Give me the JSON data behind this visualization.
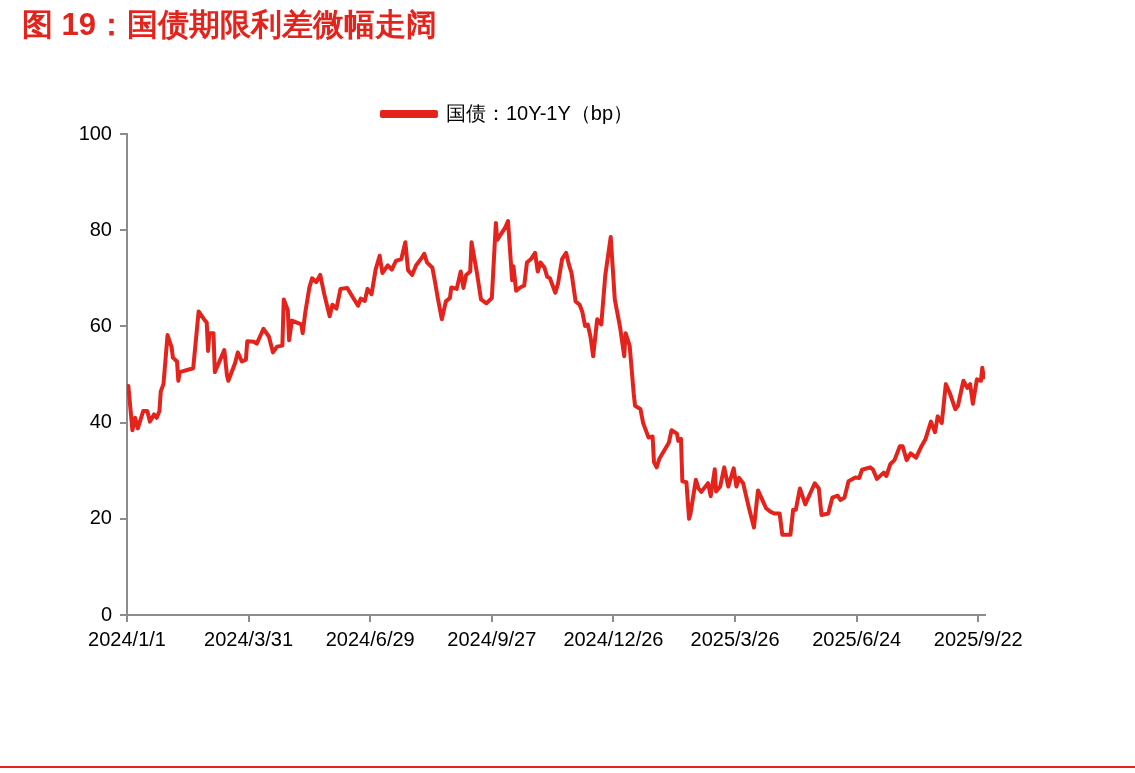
{
  "chart_data": {
    "type": "line",
    "title": "图 19：国债期限利差微幅走阔",
    "legend": "top",
    "xlim": [
      "2024-01-01",
      "2025-09-27"
    ],
    "xticks": [
      {
        "value": "2024-01-01",
        "label": "2024/1/1"
      },
      {
        "value": "2024-03-31",
        "label": "2024/3/31"
      },
      {
        "value": "2024-06-29",
        "label": "2024/6/29"
      },
      {
        "value": "2024-09-27",
        "label": "2024/9/27"
      },
      {
        "value": "2024-12-26",
        "label": "2024/12/26"
      },
      {
        "value": "2025-03-26",
        "label": "2025/3/26"
      },
      {
        "value": "2025-06-24",
        "label": "2025/6/24"
      },
      {
        "value": "2025-09-22",
        "label": "2025/9/22"
      }
    ],
    "ylim": [
      0,
      100
    ],
    "yticks": [
      0,
      20,
      40,
      60,
      80,
      100
    ],
    "x": [
      "2024-01-02",
      "2024-01-05",
      "2024-01-07",
      "2024-01-09",
      "2024-01-13",
      "2024-01-16",
      "2024-01-18",
      "2024-01-21",
      "2024-01-23",
      "2024-01-25",
      "2024-01-26",
      "2024-01-28",
      "2024-01-31",
      "2024-02-03",
      "2024-02-04",
      "2024-02-07",
      "2024-02-08",
      "2024-02-09",
      "2024-02-19",
      "2024-02-23",
      "2024-02-27",
      "2024-02-29",
      "2024-03-01",
      "2024-03-02",
      "2024-03-05",
      "2024-03-06",
      "2024-03-10",
      "2024-03-13",
      "2024-03-15",
      "2024-03-16",
      "2024-03-19",
      "2024-03-21",
      "2024-03-23",
      "2024-03-26",
      "2024-03-29",
      "2024-03-30",
      "2024-04-04",
      "2024-04-06",
      "2024-04-11",
      "2024-04-15",
      "2024-04-18",
      "2024-04-21",
      "2024-04-25",
      "2024-04-26",
      "2024-04-29",
      "2024-04-30",
      "2024-05-02",
      "2024-05-09",
      "2024-05-10",
      "2024-05-12",
      "2024-05-15",
      "2024-05-17",
      "2024-05-20",
      "2024-05-23",
      "2024-05-26",
      "2024-05-30",
      "2024-06-01",
      "2024-06-04",
      "2024-06-07",
      "2024-06-12",
      "2024-06-16",
      "2024-06-20",
      "2024-06-22",
      "2024-06-25",
      "2024-06-27",
      "2024-06-30",
      "2024-07-03",
      "2024-07-06",
      "2024-07-08",
      "2024-07-12",
      "2024-07-15",
      "2024-07-18",
      "2024-07-22",
      "2024-07-25",
      "2024-07-27",
      "2024-07-30",
      "2024-08-02",
      "2024-08-06",
      "2024-08-08",
      "2024-08-10",
      "2024-08-14",
      "2024-08-16",
      "2024-08-18",
      "2024-08-21",
      "2024-08-24",
      "2024-08-27",
      "2024-08-28",
      "2024-09-01",
      "2024-09-04",
      "2024-09-06",
      "2024-09-08",
      "2024-09-11",
      "2024-09-12",
      "2024-09-16",
      "2024-09-19",
      "2024-09-23",
      "2024-09-27",
      "2024-09-30",
      "2024-10-01",
      "2024-10-07",
      "2024-10-09",
      "2024-10-12",
      "2024-10-13",
      "2024-10-15",
      "2024-10-18",
      "2024-10-21",
      "2024-10-23",
      "2024-10-26",
      "2024-10-29",
      "2024-10-31",
      "2024-11-02",
      "2024-11-05",
      "2024-11-07",
      "2024-11-09",
      "2024-11-13",
      "2024-11-15",
      "2024-11-18",
      "2024-11-21",
      "2024-11-23",
      "2024-11-25",
      "2024-11-28",
      "2024-12-01",
      "2024-12-03",
      "2024-12-05",
      "2024-12-07",
      "2024-12-09",
      "2024-12-11",
      "2024-12-14",
      "2024-12-17",
      "2024-12-20",
      "2024-12-24",
      "2024-12-27",
      "2024-12-31",
      "2025-01-03",
      "2025-01-04",
      "2025-01-07",
      "2025-01-10",
      "2025-01-11",
      "2025-01-15",
      "2025-01-17",
      "2025-01-21",
      "2025-01-24",
      "2025-01-25",
      "2025-01-27",
      "2025-01-29",
      "2025-02-05",
      "2025-02-07",
      "2025-02-11",
      "2025-02-12",
      "2025-02-14",
      "2025-02-15",
      "2025-02-18",
      "2025-02-20",
      "2025-02-21",
      "2025-02-25",
      "2025-02-27",
      "2025-03-01",
      "2025-03-06",
      "2025-03-08",
      "2025-03-11",
      "2025-03-12",
      "2025-03-15",
      "2025-03-18",
      "2025-03-21",
      "2025-03-25",
      "2025-03-27",
      "2025-03-29",
      "2025-04-01",
      "2025-04-05",
      "2025-04-09",
      "2025-04-12",
      "2025-04-18",
      "2025-04-21",
      "2025-04-24",
      "2025-04-28",
      "2025-04-30",
      "2025-05-06",
      "2025-05-08",
      "2025-05-10",
      "2025-05-13",
      "2025-05-17",
      "2025-05-24",
      "2025-05-27",
      "2025-05-29",
      "2025-06-03",
      "2025-06-06",
      "2025-06-10",
      "2025-06-12",
      "2025-06-15",
      "2025-06-18",
      "2025-06-23",
      "2025-06-26",
      "2025-06-28",
      "2025-07-04",
      "2025-07-06",
      "2025-07-09",
      "2025-07-14",
      "2025-07-16",
      "2025-07-19",
      "2025-07-22",
      "2025-07-26",
      "2025-07-28",
      "2025-07-31",
      "2025-08-03",
      "2025-08-07",
      "2025-08-11",
      "2025-08-14",
      "2025-08-18",
      "2025-08-21",
      "2025-08-23",
      "2025-08-26",
      "2025-08-29",
      "2025-09-01",
      "2025-09-05",
      "2025-09-07",
      "2025-09-11",
      "2025-09-14",
      "2025-09-16",
      "2025-09-18",
      "2025-09-21",
      "2025-09-24",
      "2025-09-25",
      "2025-09-26"
    ],
    "series": [
      {
        "name": "国债：10Y-1Y（bp）",
        "color": "#e3231c",
        "values": [
          47.6,
          38.4,
          41,
          38.8,
          42.4,
          42.4,
          40.2,
          41.7,
          41,
          42.4,
          46.5,
          48,
          58.2,
          55.7,
          53.5,
          52.7,
          48.7,
          50.5,
          51.3,
          63.1,
          61.5,
          60.8,
          54.9,
          58.6,
          58.6,
          50.5,
          53.1,
          55.1,
          49.8,
          48.7,
          50.9,
          52.4,
          54.6,
          52.7,
          53.1,
          56.9,
          56.8,
          56.4,
          59.5,
          57.9,
          54.6,
          55.8,
          56,
          65.6,
          63.4,
          57.1,
          61.2,
          60.4,
          58.6,
          63,
          68.1,
          70,
          69.2,
          70.7,
          66.7,
          62.1,
          64.5,
          63.7,
          67.8,
          68,
          66.1,
          64.3,
          65.8,
          65.3,
          67.8,
          66.7,
          71.8,
          74.7,
          71.1,
          72.7,
          71.8,
          73.6,
          74,
          77.5,
          71.7,
          70.7,
          72.7,
          74.2,
          75.1,
          73.3,
          72.2,
          69.2,
          65.9,
          61.5,
          65.2,
          65.9,
          68.1,
          67.8,
          71.4,
          68,
          70.7,
          71.4,
          77.5,
          71.1,
          65.6,
          64.8,
          65.9,
          81.5,
          78,
          80.6,
          81.9,
          69.6,
          72.5,
          67.4,
          68.1,
          68.5,
          73.3,
          74,
          75.3,
          71.4,
          73.3,
          72.2,
          70.3,
          70,
          67,
          68.9,
          74,
          75.3,
          72.9,
          71.1,
          65.2,
          64.5,
          63,
          60.1,
          60.4,
          57.9,
          53.8,
          61.5,
          60.4,
          70.7,
          78.6,
          65.6,
          59.7,
          53.8,
          58.6,
          56,
          46.1,
          43.5,
          42.8,
          39.9,
          36.9,
          37.1,
          31.8,
          30.7,
          32.5,
          35.8,
          38.4,
          37.7,
          36.2,
          36.6,
          27.8,
          27.6,
          20,
          21,
          28.1,
          26.3,
          25.6,
          27.4,
          24.7,
          30.3,
          25.7,
          26.7,
          30.7,
          26.7,
          30.5,
          26.7,
          28.5,
          27.4,
          22.6,
          18.2,
          25.9,
          22.2,
          21.5,
          21.1,
          21.1,
          16.7,
          16.7,
          21.9,
          21.9,
          26.3,
          23,
          27.4,
          26.3,
          20.8,
          21.1,
          24.4,
          24.8,
          23.9,
          24.4,
          27.8,
          28.6,
          28.5,
          30.2,
          30.7,
          30.3,
          28.3,
          29.6,
          28.9,
          31.4,
          32.2,
          35.1,
          35.1,
          32.2,
          33.6,
          32.7,
          35.1,
          36.6,
          40.2,
          38,
          41.3,
          39.9,
          48,
          46.1,
          42.8,
          43.5,
          48.7,
          47.2,
          48,
          43.9,
          49,
          48.7,
          51.4,
          49.4
        ]
      }
    ]
  }
}
